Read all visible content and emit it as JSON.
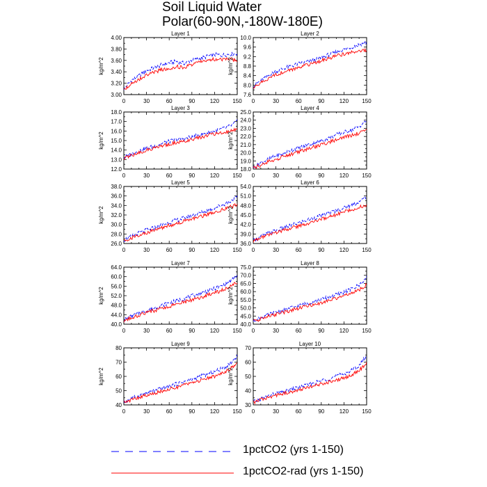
{
  "title": {
    "line1": "Soil Liquid Water",
    "line2": "Polar(60-90N,-180W-180E)"
  },
  "legend": {
    "placement": "bottom",
    "entries": [
      {
        "label": "1pctCO2 (yrs 1-150)",
        "color": "#0000ff",
        "style": "dashed"
      },
      {
        "label": "1pctCO2-rad (yrs 1-150)",
        "color": "#ff0000",
        "style": "solid"
      }
    ]
  },
  "chart_data": [
    {
      "type": "line",
      "title": "Layer 1",
      "ylabel": "kg/m^2",
      "xlim": [
        0,
        150
      ],
      "ylim": [
        3.0,
        4.0
      ],
      "xticks": [
        0,
        30,
        60,
        90,
        120,
        150
      ],
      "yticks": [
        "3.00",
        "3.20",
        "3.40",
        "3.60",
        "3.80",
        "4.00"
      ],
      "series": [
        {
          "color": "#0000ff",
          "style": "dashed",
          "x": [
            0,
            10,
            20,
            30,
            40,
            50,
            60,
            70,
            80,
            90,
            100,
            110,
            120,
            130,
            140,
            150
          ],
          "y": [
            3.1,
            3.25,
            3.33,
            3.42,
            3.47,
            3.52,
            3.56,
            3.58,
            3.55,
            3.6,
            3.63,
            3.67,
            3.7,
            3.69,
            3.71,
            3.72
          ]
        },
        {
          "color": "#ff0000",
          "style": "solid",
          "x": [
            0,
            10,
            20,
            30,
            40,
            50,
            60,
            70,
            80,
            90,
            100,
            110,
            120,
            130,
            140,
            150
          ],
          "y": [
            3.08,
            3.2,
            3.27,
            3.34,
            3.39,
            3.44,
            3.46,
            3.49,
            3.47,
            3.53,
            3.57,
            3.6,
            3.62,
            3.61,
            3.62,
            3.6
          ]
        }
      ]
    },
    {
      "type": "line",
      "title": "Layer 2",
      "ylabel": "kg/m^2",
      "xlim": [
        0,
        150
      ],
      "ylim": [
        7.6,
        10.0
      ],
      "xticks": [
        0,
        30,
        60,
        90,
        120,
        150
      ],
      "yticks": [
        "7.6",
        "8.0",
        "8.4",
        "8.8",
        "9.2",
        "9.6",
        "10.0"
      ],
      "series": [
        {
          "color": "#0000ff",
          "style": "dashed",
          "x": [
            0,
            10,
            20,
            30,
            40,
            50,
            60,
            70,
            80,
            90,
            100,
            110,
            120,
            130,
            140,
            150
          ],
          "y": [
            7.95,
            8.2,
            8.4,
            8.58,
            8.7,
            8.8,
            8.9,
            8.98,
            9.05,
            9.15,
            9.28,
            9.4,
            9.5,
            9.6,
            9.7,
            9.8
          ]
        },
        {
          "color": "#ff0000",
          "style": "solid",
          "x": [
            0,
            10,
            20,
            30,
            40,
            50,
            60,
            70,
            80,
            90,
            100,
            110,
            120,
            130,
            140,
            150
          ],
          "y": [
            7.85,
            8.1,
            8.28,
            8.43,
            8.55,
            8.65,
            8.75,
            8.85,
            8.92,
            9.03,
            9.13,
            9.22,
            9.3,
            9.38,
            9.45,
            9.48
          ]
        }
      ]
    },
    {
      "type": "line",
      "title": "Layer 3",
      "ylabel": "kg/m^2",
      "xlim": [
        0,
        150
      ],
      "ylim": [
        12.0,
        18.0
      ],
      "xticks": [
        0,
        30,
        60,
        90,
        120,
        150
      ],
      "yticks": [
        "12.0",
        "13.0",
        "14.0",
        "15.0",
        "16.0",
        "17.0",
        "18.0"
      ],
      "series": [
        {
          "color": "#0000ff",
          "style": "dashed",
          "x": [
            0,
            10,
            20,
            30,
            40,
            50,
            60,
            70,
            80,
            90,
            100,
            110,
            120,
            130,
            140,
            150
          ],
          "y": [
            13.2,
            13.6,
            13.9,
            14.2,
            14.4,
            14.7,
            14.9,
            15.1,
            15.2,
            15.4,
            15.6,
            15.8,
            16.0,
            16.2,
            16.5,
            17.0
          ]
        },
        {
          "color": "#ff0000",
          "style": "solid",
          "x": [
            0,
            10,
            20,
            30,
            40,
            50,
            60,
            70,
            80,
            90,
            100,
            110,
            120,
            130,
            140,
            150
          ],
          "y": [
            13.1,
            13.4,
            13.7,
            14.0,
            14.2,
            14.4,
            14.6,
            14.8,
            14.9,
            15.1,
            15.3,
            15.5,
            15.7,
            15.8,
            16.0,
            16.2
          ]
        }
      ]
    },
    {
      "type": "line",
      "title": "Layer 4",
      "ylabel": "kg/m^2",
      "xlim": [
        0,
        150
      ],
      "ylim": [
        18.0,
        25.0
      ],
      "xticks": [
        0,
        30,
        60,
        90,
        120,
        150
      ],
      "yticks": [
        "18.0",
        "19.0",
        "20.0",
        "21.0",
        "22.0",
        "23.0",
        "24.0",
        "25.0"
      ],
      "series": [
        {
          "color": "#0000ff",
          "style": "dashed",
          "x": [
            0,
            10,
            20,
            30,
            40,
            50,
            60,
            70,
            80,
            90,
            100,
            110,
            120,
            130,
            140,
            150
          ],
          "y": [
            18.2,
            18.8,
            19.2,
            19.6,
            19.9,
            20.3,
            20.6,
            20.9,
            21.2,
            21.5,
            21.8,
            22.2,
            22.5,
            22.8,
            23.2,
            24.0
          ]
        },
        {
          "color": "#ff0000",
          "style": "solid",
          "x": [
            0,
            10,
            20,
            30,
            40,
            50,
            60,
            70,
            80,
            90,
            100,
            110,
            120,
            130,
            140,
            150
          ],
          "y": [
            18.1,
            18.5,
            18.9,
            19.2,
            19.5,
            19.8,
            20.1,
            20.4,
            20.7,
            21.0,
            21.3,
            21.6,
            21.9,
            22.1,
            22.4,
            22.7
          ]
        }
      ]
    },
    {
      "type": "line",
      "title": "Layer 5",
      "ylabel": "kg/m^2",
      "xlim": [
        0,
        150
      ],
      "ylim": [
        26.0,
        38.0
      ],
      "xticks": [
        0,
        30,
        60,
        90,
        120,
        150
      ],
      "yticks": [
        "26.0",
        "28.0",
        "30.0",
        "32.0",
        "34.0",
        "36.0",
        "38.0"
      ],
      "series": [
        {
          "color": "#0000ff",
          "style": "dashed",
          "x": [
            0,
            10,
            20,
            30,
            40,
            50,
            60,
            70,
            80,
            90,
            100,
            110,
            120,
            130,
            140,
            150
          ],
          "y": [
            26.7,
            27.5,
            28.2,
            28.8,
            29.3,
            29.9,
            30.4,
            30.9,
            31.4,
            31.9,
            32.4,
            32.9,
            33.5,
            34.1,
            34.8,
            35.8
          ]
        },
        {
          "color": "#ff0000",
          "style": "solid",
          "x": [
            0,
            10,
            20,
            30,
            40,
            50,
            60,
            70,
            80,
            90,
            100,
            110,
            120,
            130,
            140,
            150
          ],
          "y": [
            26.5,
            27.2,
            27.8,
            28.3,
            28.8,
            29.3,
            29.8,
            30.2,
            30.7,
            31.2,
            31.6,
            32.1,
            32.6,
            33.1,
            33.6,
            34.2
          ]
        }
      ]
    },
    {
      "type": "line",
      "title": "Layer 6",
      "ylabel": "kg/m^2",
      "xlim": [
        0,
        150
      ],
      "ylim": [
        36.0,
        54.0
      ],
      "xticks": [
        0,
        30,
        60,
        90,
        120,
        150
      ],
      "yticks": [
        "36.0",
        "39.0",
        "42.0",
        "45.0",
        "48.0",
        "51.0",
        "54.0"
      ],
      "series": [
        {
          "color": "#0000ff",
          "style": "dashed",
          "x": [
            0,
            10,
            20,
            30,
            40,
            50,
            60,
            70,
            80,
            90,
            100,
            110,
            120,
            130,
            140,
            150
          ],
          "y": [
            37.0,
            38.2,
            39.2,
            40.1,
            40.9,
            41.7,
            42.5,
            43.3,
            44.0,
            44.8,
            45.6,
            46.4,
            47.2,
            48.1,
            49.2,
            50.6
          ]
        },
        {
          "color": "#ff0000",
          "style": "solid",
          "x": [
            0,
            10,
            20,
            30,
            40,
            50,
            60,
            70,
            80,
            90,
            100,
            110,
            120,
            130,
            140,
            150
          ],
          "y": [
            36.8,
            37.8,
            38.6,
            39.4,
            40.1,
            40.8,
            41.5,
            42.2,
            42.9,
            43.6,
            44.3,
            45.1,
            45.9,
            46.6,
            47.4,
            48.2
          ]
        }
      ]
    },
    {
      "type": "line",
      "title": "Layer 7",
      "ylabel": "kg/m^2",
      "xlim": [
        0,
        150
      ],
      "ylim": [
        40.0,
        64.0
      ],
      "xticks": [
        0,
        30,
        60,
        90,
        120,
        150
      ],
      "yticks": [
        "40.0",
        "44.0",
        "48.0",
        "52.0",
        "56.0",
        "60.0",
        "64.0"
      ],
      "series": [
        {
          "color": "#0000ff",
          "style": "dashed",
          "x": [
            0,
            10,
            20,
            30,
            40,
            50,
            60,
            70,
            80,
            90,
            100,
            110,
            120,
            130,
            140,
            150
          ],
          "y": [
            41.8,
            43.3,
            44.6,
            45.8,
            46.8,
            47.9,
            48.9,
            49.9,
            50.8,
            51.8,
            52.8,
            53.9,
            55.0,
            56.2,
            57.8,
            60.5
          ]
        },
        {
          "color": "#ff0000",
          "style": "solid",
          "x": [
            0,
            10,
            20,
            30,
            40,
            50,
            60,
            70,
            80,
            90,
            100,
            110,
            120,
            130,
            140,
            150
          ],
          "y": [
            41.5,
            42.7,
            43.8,
            44.8,
            45.7,
            46.6,
            47.5,
            48.4,
            49.3,
            50.2,
            51.1,
            52.1,
            53.2,
            54.3,
            55.8,
            57.8
          ]
        }
      ]
    },
    {
      "type": "line",
      "title": "Layer 8",
      "ylabel": "kg/m^2",
      "xlim": [
        0,
        150
      ],
      "ylim": [
        40.0,
        75.0
      ],
      "xticks": [
        0,
        30,
        60,
        90,
        120,
        150
      ],
      "yticks": [
        "40.0",
        "45.0",
        "50.0",
        "55.0",
        "60.0",
        "65.0",
        "70.0",
        "75.0"
      ],
      "series": [
        {
          "color": "#0000ff",
          "style": "dashed",
          "x": [
            0,
            10,
            20,
            30,
            40,
            50,
            60,
            70,
            80,
            90,
            100,
            110,
            120,
            130,
            140,
            150
          ],
          "y": [
            42.0,
            44.0,
            45.8,
            47.3,
            48.6,
            50.0,
            51.3,
            52.6,
            53.9,
            55.2,
            56.6,
            58.1,
            59.7,
            61.5,
            64.0,
            68.5
          ]
        },
        {
          "color": "#ff0000",
          "style": "solid",
          "x": [
            0,
            10,
            20,
            30,
            40,
            50,
            60,
            70,
            80,
            90,
            100,
            110,
            120,
            130,
            140,
            150
          ],
          "y": [
            41.6,
            43.3,
            44.8,
            46.1,
            47.3,
            48.5,
            49.7,
            50.9,
            52.1,
            53.3,
            54.5,
            55.8,
            57.2,
            58.8,
            61.0,
            64.5
          ]
        }
      ]
    },
    {
      "type": "line",
      "title": "Layer 9",
      "ylabel": "kg/m^2",
      "xlim": [
        0,
        150
      ],
      "ylim": [
        40,
        80
      ],
      "xticks": [
        0,
        30,
        60,
        90,
        120,
        150
      ],
      "yticks": [
        "40",
        "50",
        "60",
        "70",
        "80"
      ],
      "series": [
        {
          "color": "#0000ff",
          "style": "dashed",
          "x": [
            0,
            10,
            20,
            30,
            40,
            50,
            60,
            70,
            80,
            90,
            100,
            110,
            120,
            130,
            140,
            150
          ],
          "y": [
            42.0,
            44.5,
            46.5,
            48.3,
            49.9,
            51.5,
            53.1,
            54.7,
            56.3,
            58.0,
            59.7,
            61.5,
            63.4,
            65.6,
            68.5,
            74.5
          ]
        },
        {
          "color": "#ff0000",
          "style": "solid",
          "x": [
            0,
            10,
            20,
            30,
            40,
            50,
            60,
            70,
            80,
            90,
            100,
            110,
            120,
            130,
            140,
            150
          ],
          "y": [
            41.7,
            43.6,
            45.3,
            46.9,
            48.3,
            49.7,
            51.1,
            52.5,
            53.9,
            55.4,
            56.9,
            58.5,
            60.2,
            62.1,
            64.8,
            70.0
          ]
        }
      ]
    },
    {
      "type": "line",
      "title": "Layer 10",
      "ylabel": "kg/m^2",
      "xlim": [
        0,
        150
      ],
      "ylim": [
        30,
        70
      ],
      "xticks": [
        0,
        30,
        60,
        90,
        120,
        150
      ],
      "yticks": [
        "30",
        "40",
        "50",
        "60",
        "70"
      ],
      "series": [
        {
          "color": "#0000ff",
          "style": "dashed",
          "x": [
            0,
            10,
            20,
            30,
            40,
            50,
            60,
            70,
            80,
            90,
            100,
            110,
            120,
            130,
            140,
            150
          ],
          "y": [
            32.0,
            34.3,
            36.2,
            37.9,
            39.3,
            40.8,
            42.3,
            43.8,
            45.3,
            46.9,
            48.5,
            50.2,
            52.0,
            54.2,
            57.5,
            64.5
          ]
        },
        {
          "color": "#ff0000",
          "style": "solid",
          "x": [
            0,
            10,
            20,
            30,
            40,
            50,
            60,
            70,
            80,
            90,
            100,
            110,
            120,
            130,
            140,
            150
          ],
          "y": [
            31.8,
            33.6,
            35.2,
            36.6,
            37.9,
            39.2,
            40.5,
            41.8,
            43.2,
            44.6,
            46.0,
            47.5,
            49.1,
            51.0,
            54.0,
            59.5
          ]
        }
      ]
    }
  ]
}
